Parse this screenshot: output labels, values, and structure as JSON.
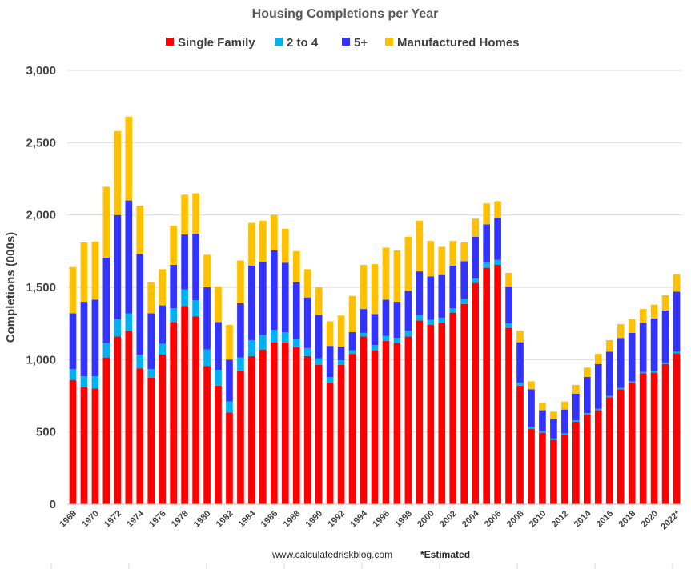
{
  "chart_data": {
    "type": "bar",
    "stacked": true,
    "title": "Housing Completions per Year",
    "ylabel": "Completions (000s)",
    "xlabel": "",
    "ylim": [
      0,
      3000
    ],
    "yticks": [
      "0",
      "500",
      "1,000",
      "1,500",
      "2,000",
      "2,500",
      "3,000"
    ],
    "ytick_values": [
      0,
      500,
      1000,
      1500,
      2000,
      2500,
      3000
    ],
    "grid": true,
    "legend_position": "top",
    "source": "www.calculatedriskblog.com",
    "note": "*Estimated",
    "categories": [
      "1968",
      "1969",
      "1970",
      "1971",
      "1972",
      "1973",
      "1974",
      "1975",
      "1976",
      "1977",
      "1978",
      "1979",
      "1980",
      "1981",
      "1982",
      "1983",
      "1984",
      "1985",
      "1986",
      "1987",
      "1988",
      "1989",
      "1990",
      "1991",
      "1992",
      "1993",
      "1994",
      "1995",
      "1996",
      "1997",
      "1998",
      "1999",
      "2000",
      "2001",
      "2002",
      "2003",
      "2004",
      "2005",
      "2006",
      "2007",
      "2008",
      "2009",
      "2010",
      "2011",
      "2012",
      "2013",
      "2014",
      "2015",
      "2016",
      "2017",
      "2018",
      "2019",
      "2020",
      "2021",
      "2022*"
    ],
    "xtick_labels": [
      "1968",
      "1970",
      "1972",
      "1974",
      "1976",
      "1978",
      "1980",
      "1982",
      "1984",
      "1986",
      "1988",
      "1990",
      "1992",
      "1994",
      "1996",
      "1998",
      "2000",
      "2002",
      "2004",
      "2006",
      "2008",
      "2010",
      "2012",
      "2014",
      "2016",
      "2018",
      "2020",
      "2022*"
    ],
    "series": [
      {
        "name": "Single Family",
        "color": "#ff0000",
        "values": [
          860,
          810,
          800,
          1015,
          1160,
          1200,
          940,
          875,
          1035,
          1260,
          1370,
          1300,
          955,
          820,
          635,
          925,
          1025,
          1070,
          1120,
          1120,
          1085,
          1025,
          965,
          840,
          965,
          1040,
          1160,
          1065,
          1130,
          1115,
          1160,
          1270,
          1240,
          1255,
          1325,
          1385,
          1530,
          1635,
          1655,
          1220,
          820,
          520,
          495,
          445,
          480,
          570,
          620,
          650,
          740,
          795,
          840,
          905,
          910,
          970,
          1045
        ]
      },
      {
        "name": "2 to 4",
        "color": "#00b0f0",
        "values": [
          75,
          75,
          85,
          100,
          120,
          120,
          95,
          60,
          75,
          95,
          115,
          110,
          115,
          110,
          75,
          90,
          110,
          100,
          85,
          70,
          55,
          55,
          45,
          40,
          30,
          25,
          25,
          35,
          35,
          35,
          40,
          40,
          35,
          35,
          30,
          35,
          30,
          35,
          35,
          30,
          20,
          15,
          10,
          10,
          10,
          10,
          10,
          10,
          10,
          10,
          10,
          10,
          10,
          10,
          10
        ]
      },
      {
        "name": "5+",
        "color": "#3333ff",
        "values": [
          385,
          515,
          530,
          590,
          720,
          780,
          695,
          385,
          265,
          300,
          380,
          460,
          430,
          330,
          290,
          375,
          515,
          505,
          550,
          480,
          395,
          350,
          300,
          215,
          95,
          125,
          165,
          215,
          250,
          250,
          275,
          300,
          300,
          295,
          295,
          260,
          290,
          265,
          290,
          255,
          280,
          260,
          145,
          135,
          165,
          185,
          250,
          310,
          305,
          345,
          335,
          340,
          365,
          360,
          415
        ]
      },
      {
        "name": "Manufactured Homes",
        "color": "#ffc000",
        "values": [
          320,
          410,
          400,
          490,
          580,
          580,
          335,
          215,
          250,
          270,
          275,
          280,
          225,
          245,
          240,
          295,
          295,
          285,
          245,
          235,
          215,
          195,
          190,
          170,
          215,
          250,
          305,
          345,
          360,
          355,
          375,
          350,
          245,
          195,
          170,
          130,
          125,
          145,
          115,
          95,
          80,
          55,
          50,
          50,
          55,
          60,
          65,
          70,
          80,
          95,
          95,
          95,
          95,
          105,
          120
        ]
      }
    ]
  }
}
